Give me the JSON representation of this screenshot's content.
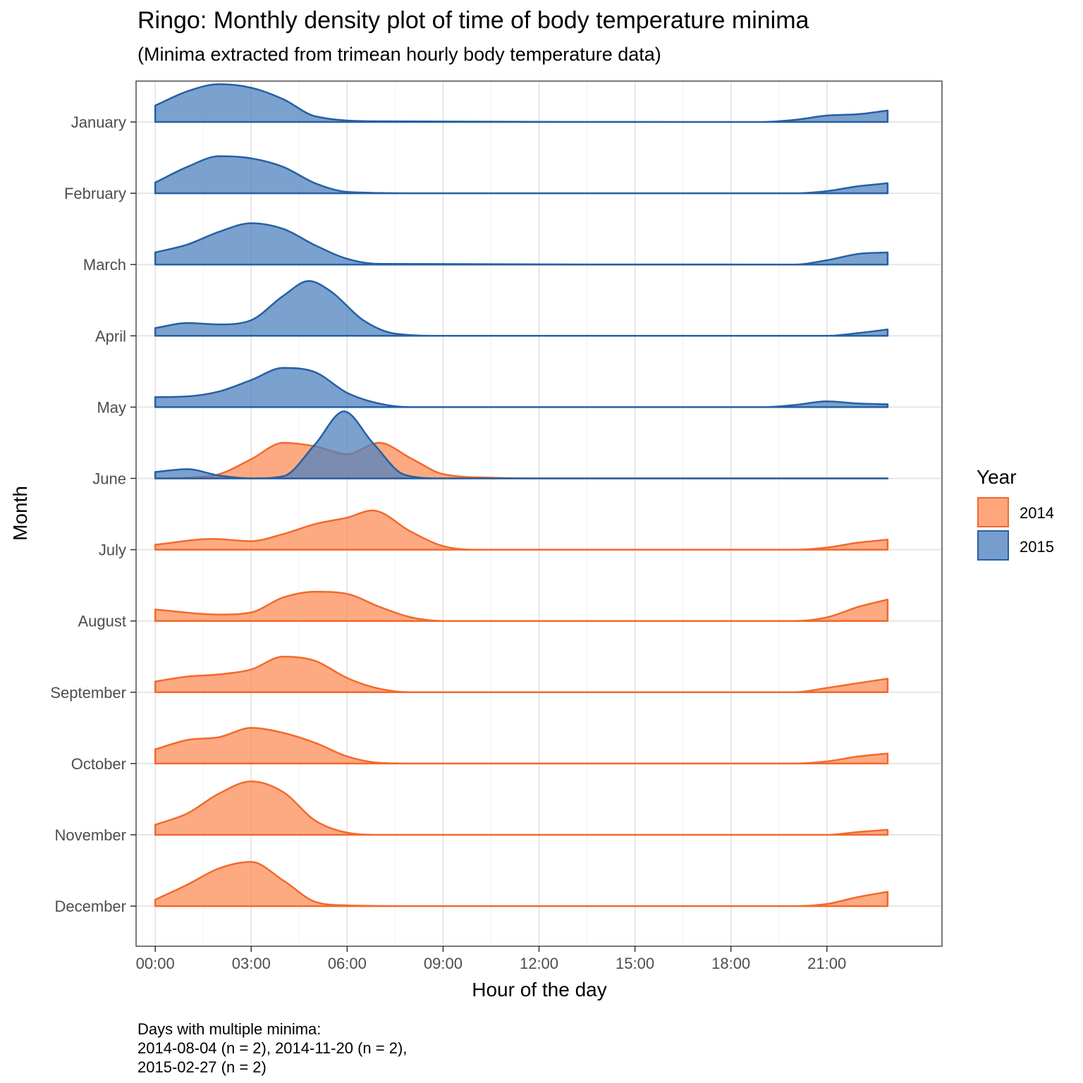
{
  "chart_data": {
    "type": "area",
    "subtype": "ridgeline-density",
    "title": "Ringo: Monthly density plot of time of body temperature minima",
    "subtitle": "(Minima extracted from trimean hourly body temperature data)",
    "xlabel": "Hour of the day",
    "ylabel": "Month",
    "xlim": [
      -0.6,
      24.6
    ],
    "x_ticks": [
      0,
      3,
      6,
      9,
      12,
      15,
      18,
      21
    ],
    "x_tick_labels": [
      "00:00",
      "03:00",
      "06:00",
      "09:00",
      "12:00",
      "15:00",
      "18:00",
      "21:00"
    ],
    "categories": [
      "January",
      "February",
      "March",
      "April",
      "May",
      "June",
      "July",
      "August",
      "September",
      "October",
      "November",
      "December"
    ],
    "grid": true,
    "legend": {
      "title": "Year",
      "position": "right",
      "entries": [
        {
          "label": "2014",
          "fill": "#fc8d59",
          "stroke": "#f26a2c"
        },
        {
          "label": "2015",
          "fill": "#4f81bd",
          "stroke": "#2660a4"
        }
      ]
    },
    "ridge_unit_note": "heights expressed in multiples of one ridge spacing",
    "series": [
      {
        "month": "January",
        "year": "2015",
        "points": [
          [
            0,
            0.23
          ],
          [
            1,
            0.43
          ],
          [
            2,
            0.53
          ],
          [
            3,
            0.48
          ],
          [
            4,
            0.32
          ],
          [
            5,
            0.08
          ],
          [
            7,
            0.01
          ],
          [
            19,
            0.0
          ],
          [
            20,
            0.03
          ],
          [
            21,
            0.09
          ],
          [
            22,
            0.11
          ],
          [
            22.9,
            0.16
          ]
        ]
      },
      {
        "month": "February",
        "year": "2015",
        "points": [
          [
            0,
            0.15
          ],
          [
            1,
            0.37
          ],
          [
            2,
            0.52
          ],
          [
            3,
            0.49
          ],
          [
            4,
            0.37
          ],
          [
            5,
            0.14
          ],
          [
            6,
            0.02
          ],
          [
            8,
            0.0
          ],
          [
            20,
            0.0
          ],
          [
            21,
            0.03
          ],
          [
            22,
            0.1
          ],
          [
            22.9,
            0.14
          ]
        ]
      },
      {
        "month": "March",
        "year": "2015",
        "points": [
          [
            0,
            0.17
          ],
          [
            1,
            0.28
          ],
          [
            2,
            0.46
          ],
          [
            3,
            0.58
          ],
          [
            4,
            0.5
          ],
          [
            5,
            0.27
          ],
          [
            6,
            0.08
          ],
          [
            7,
            0.01
          ],
          [
            20,
            0.0
          ],
          [
            21,
            0.06
          ],
          [
            22,
            0.15
          ],
          [
            22.9,
            0.17
          ]
        ]
      },
      {
        "month": "April",
        "year": "2015",
        "points": [
          [
            0,
            0.11
          ],
          [
            1,
            0.18
          ],
          [
            2,
            0.16
          ],
          [
            3,
            0.22
          ],
          [
            4,
            0.56
          ],
          [
            4.8,
            0.77
          ],
          [
            5.5,
            0.62
          ],
          [
            6.5,
            0.22
          ],
          [
            7.5,
            0.03
          ],
          [
            9,
            0.0
          ],
          [
            21,
            0.0
          ],
          [
            22,
            0.04
          ],
          [
            22.9,
            0.09
          ]
        ]
      },
      {
        "month": "May",
        "year": "2015",
        "points": [
          [
            0,
            0.14
          ],
          [
            1,
            0.15
          ],
          [
            2,
            0.22
          ],
          [
            3,
            0.38
          ],
          [
            4,
            0.55
          ],
          [
            5,
            0.49
          ],
          [
            6,
            0.2
          ],
          [
            7,
            0.05
          ],
          [
            8,
            0.0
          ],
          [
            19,
            0.0
          ],
          [
            20,
            0.03
          ],
          [
            21,
            0.08
          ],
          [
            22,
            0.05
          ],
          [
            22.9,
            0.04
          ]
        ]
      },
      {
        "month": "June",
        "year": "2014",
        "points": [
          [
            0,
            0.0
          ],
          [
            1,
            0.01
          ],
          [
            2,
            0.06
          ],
          [
            3,
            0.27
          ],
          [
            4,
            0.5
          ],
          [
            5,
            0.45
          ],
          [
            6,
            0.34
          ],
          [
            7,
            0.5
          ],
          [
            8,
            0.28
          ],
          [
            9,
            0.06
          ],
          [
            10.5,
            0.01
          ],
          [
            12,
            0.0
          ],
          [
            22.9,
            0.0
          ]
        ]
      },
      {
        "month": "June",
        "year": "2015",
        "points": [
          [
            0,
            0.09
          ],
          [
            1,
            0.13
          ],
          [
            2,
            0.04
          ],
          [
            3,
            0.0
          ],
          [
            4,
            0.03
          ],
          [
            5,
            0.48
          ],
          [
            5.9,
            0.94
          ],
          [
            6.8,
            0.5
          ],
          [
            7.8,
            0.05
          ],
          [
            9,
            0.0
          ],
          [
            22.9,
            0.0
          ]
        ]
      },
      {
        "month": "July",
        "year": "2014",
        "points": [
          [
            0,
            0.07
          ],
          [
            1.8,
            0.15
          ],
          [
            3,
            0.12
          ],
          [
            4,
            0.22
          ],
          [
            5,
            0.36
          ],
          [
            6,
            0.45
          ],
          [
            6.8,
            0.55
          ],
          [
            8,
            0.25
          ],
          [
            9,
            0.05
          ],
          [
            10,
            0.0
          ],
          [
            20,
            0.0
          ],
          [
            21,
            0.03
          ],
          [
            22,
            0.1
          ],
          [
            22.9,
            0.14
          ]
        ]
      },
      {
        "month": "August",
        "year": "2014",
        "points": [
          [
            0,
            0.16
          ],
          [
            2,
            0.09
          ],
          [
            3,
            0.12
          ],
          [
            4,
            0.33
          ],
          [
            5,
            0.41
          ],
          [
            6,
            0.38
          ],
          [
            7,
            0.2
          ],
          [
            8,
            0.05
          ],
          [
            9,
            0.0
          ],
          [
            20,
            0.0
          ],
          [
            21,
            0.05
          ],
          [
            22,
            0.2
          ],
          [
            22.9,
            0.3
          ]
        ]
      },
      {
        "month": "September",
        "year": "2014",
        "points": [
          [
            0,
            0.15
          ],
          [
            1,
            0.22
          ],
          [
            2,
            0.25
          ],
          [
            3,
            0.32
          ],
          [
            4,
            0.5
          ],
          [
            5,
            0.44
          ],
          [
            6,
            0.2
          ],
          [
            7,
            0.05
          ],
          [
            8,
            0.0
          ],
          [
            20,
            0.0
          ],
          [
            21,
            0.06
          ],
          [
            22,
            0.13
          ],
          [
            22.9,
            0.19
          ]
        ]
      },
      {
        "month": "October",
        "year": "2014",
        "points": [
          [
            0,
            0.2
          ],
          [
            1,
            0.33
          ],
          [
            2,
            0.37
          ],
          [
            3,
            0.5
          ],
          [
            4,
            0.43
          ],
          [
            5,
            0.29
          ],
          [
            6,
            0.1
          ],
          [
            7,
            0.01
          ],
          [
            8,
            0.0
          ],
          [
            20,
            0.0
          ],
          [
            21,
            0.03
          ],
          [
            22,
            0.1
          ],
          [
            22.9,
            0.14
          ]
        ]
      },
      {
        "month": "November",
        "year": "2014",
        "points": [
          [
            0,
            0.14
          ],
          [
            1,
            0.3
          ],
          [
            2,
            0.58
          ],
          [
            3,
            0.75
          ],
          [
            4,
            0.6
          ],
          [
            5,
            0.2
          ],
          [
            6,
            0.03
          ],
          [
            7,
            0.0
          ],
          [
            21,
            0.0
          ],
          [
            22,
            0.04
          ],
          [
            22.9,
            0.07
          ]
        ]
      },
      {
        "month": "December",
        "year": "2014",
        "points": [
          [
            0,
            0.09
          ],
          [
            1,
            0.3
          ],
          [
            2,
            0.53
          ],
          [
            3,
            0.62
          ],
          [
            4,
            0.36
          ],
          [
            5,
            0.06
          ],
          [
            6,
            0.01
          ],
          [
            8,
            0.0
          ],
          [
            20,
            0.0
          ],
          [
            21,
            0.03
          ],
          [
            22,
            0.13
          ],
          [
            22.9,
            0.2
          ]
        ]
      }
    ],
    "caption": [
      "Days with multiple minima:",
      "2014-08-04 (n = 2), 2014-11-20 (n = 2),",
      "2015-02-27 (n = 2)"
    ]
  }
}
